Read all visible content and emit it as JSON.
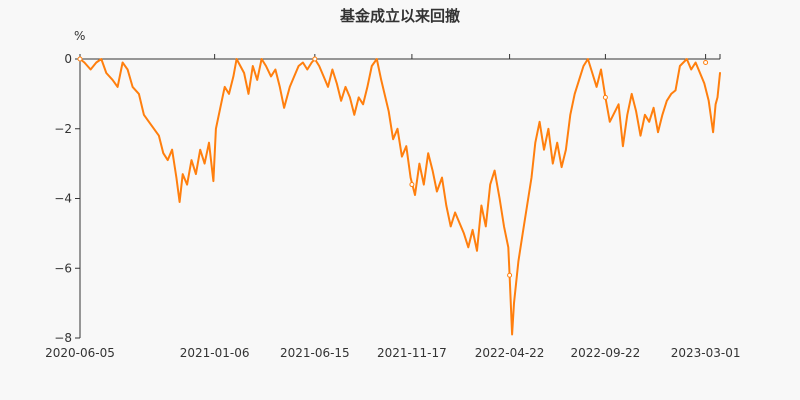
{
  "colors": {
    "series": "#ff7f0e",
    "axis": "#333333",
    "background": "#f8f8f8"
  },
  "chart_data": {
    "type": "line",
    "title": "基金成立以来回撤",
    "ylabel": "%",
    "xlabel": "",
    "ylim": [
      -8,
      0
    ],
    "yticks": [
      0,
      -2,
      -4,
      -6,
      -8
    ],
    "xlim": [
      "2020-06-05",
      "2023-03-24"
    ],
    "xticks": [
      "2020-06-05",
      "2021-01-06",
      "2021-06-15",
      "2021-11-17",
      "2022-04-22",
      "2022-09-22",
      "2023-03-01"
    ],
    "grid": false,
    "legend": "none",
    "series": [
      {
        "name": "",
        "points": [
          [
            "2020-06-05",
            0
          ],
          [
            "2020-06-12",
            -0.1
          ],
          [
            "2020-06-22",
            -0.3
          ],
          [
            "2020-07-01",
            -0.1
          ],
          [
            "2020-07-09",
            0
          ],
          [
            "2020-07-17",
            -0.4
          ],
          [
            "2020-07-27",
            -0.6
          ],
          [
            "2020-08-04",
            -0.8
          ],
          [
            "2020-08-12",
            -0.1
          ],
          [
            "2020-08-20",
            -0.3
          ],
          [
            "2020-08-28",
            -0.8
          ],
          [
            "2020-09-07",
            -1.0
          ],
          [
            "2020-09-15",
            -1.6
          ],
          [
            "2020-09-23",
            -1.8
          ],
          [
            "2020-10-09",
            -2.2
          ],
          [
            "2020-10-16",
            -2.7
          ],
          [
            "2020-10-23",
            -2.9
          ],
          [
            "2020-10-30",
            -2.6
          ],
          [
            "2020-11-06",
            -3.4
          ],
          [
            "2020-11-11",
            -4.1
          ],
          [
            "2020-11-16",
            -3.3
          ],
          [
            "2020-11-23",
            -3.6
          ],
          [
            "2020-11-30",
            -2.9
          ],
          [
            "2020-12-07",
            -3.3
          ],
          [
            "2020-12-14",
            -2.6
          ],
          [
            "2020-12-21",
            -3.0
          ],
          [
            "2020-12-28",
            -2.4
          ],
          [
            "2021-01-04",
            -3.5
          ],
          [
            "2021-01-08",
            -2.0
          ],
          [
            "2021-01-15",
            -1.4
          ],
          [
            "2021-01-22",
            -0.8
          ],
          [
            "2021-01-29",
            -1.0
          ],
          [
            "2021-02-05",
            -0.5
          ],
          [
            "2021-02-10",
            0
          ],
          [
            "2021-02-22",
            -0.4
          ],
          [
            "2021-03-01",
            -1.0
          ],
          [
            "2021-03-08",
            -0.2
          ],
          [
            "2021-03-15",
            -0.6
          ],
          [
            "2021-03-22",
            0
          ],
          [
            "2021-03-29",
            -0.2
          ],
          [
            "2021-04-06",
            -0.5
          ],
          [
            "2021-04-13",
            -0.3
          ],
          [
            "2021-04-20",
            -0.8
          ],
          [
            "2021-04-27",
            -1.4
          ],
          [
            "2021-05-06",
            -0.8
          ],
          [
            "2021-05-13",
            -0.5
          ],
          [
            "2021-05-20",
            -0.2
          ],
          [
            "2021-05-27",
            -0.1
          ],
          [
            "2021-06-03",
            -0.3
          ],
          [
            "2021-06-10",
            -0.1
          ],
          [
            "2021-06-15",
            0
          ],
          [
            "2021-06-22",
            -0.2
          ],
          [
            "2021-06-29",
            -0.5
          ],
          [
            "2021-07-06",
            -0.8
          ],
          [
            "2021-07-13",
            -0.3
          ],
          [
            "2021-07-20",
            -0.7
          ],
          [
            "2021-07-27",
            -1.2
          ],
          [
            "2021-08-03",
            -0.8
          ],
          [
            "2021-08-10",
            -1.1
          ],
          [
            "2021-08-17",
            -1.6
          ],
          [
            "2021-08-24",
            -1.1
          ],
          [
            "2021-08-31",
            -1.3
          ],
          [
            "2021-09-07",
            -0.8
          ],
          [
            "2021-09-14",
            -0.2
          ],
          [
            "2021-09-22",
            0
          ],
          [
            "2021-09-29",
            -0.6
          ],
          [
            "2021-10-11",
            -1.5
          ],
          [
            "2021-10-18",
            -2.3
          ],
          [
            "2021-10-25",
            -2.0
          ],
          [
            "2021-11-01",
            -2.8
          ],
          [
            "2021-11-08",
            -2.5
          ],
          [
            "2021-11-15",
            -3.4
          ],
          [
            "2021-11-22",
            -3.9
          ],
          [
            "2021-11-29",
            -3.0
          ],
          [
            "2021-12-06",
            -3.6
          ],
          [
            "2021-12-13",
            -2.7
          ],
          [
            "2021-12-20",
            -3.2
          ],
          [
            "2021-12-27",
            -3.8
          ],
          [
            "2022-01-04",
            -3.4
          ],
          [
            "2022-01-11",
            -4.2
          ],
          [
            "2022-01-18",
            -4.8
          ],
          [
            "2022-01-25",
            -4.4
          ],
          [
            "2022-02-08",
            -5.0
          ],
          [
            "2022-02-15",
            -5.4
          ],
          [
            "2022-02-22",
            -4.9
          ],
          [
            "2022-03-01",
            -5.5
          ],
          [
            "2022-03-08",
            -4.2
          ],
          [
            "2022-03-15",
            -4.8
          ],
          [
            "2022-03-22",
            -3.6
          ],
          [
            "2022-03-29",
            -3.2
          ],
          [
            "2022-04-06",
            -4.0
          ],
          [
            "2022-04-13",
            -4.8
          ],
          [
            "2022-04-20",
            -5.4
          ],
          [
            "2022-04-22",
            -6.2
          ],
          [
            "2022-04-26",
            -7.9
          ],
          [
            "2022-04-29",
            -7.0
          ],
          [
            "2022-05-06",
            -5.8
          ],
          [
            "2022-05-13",
            -5.0
          ],
          [
            "2022-05-20",
            -4.2
          ],
          [
            "2022-05-27",
            -3.4
          ],
          [
            "2022-06-02",
            -2.4
          ],
          [
            "2022-06-09",
            -1.8
          ],
          [
            "2022-06-16",
            -2.6
          ],
          [
            "2022-06-23",
            -2.0
          ],
          [
            "2022-06-30",
            -3.0
          ],
          [
            "2022-07-07",
            -2.4
          ],
          [
            "2022-07-14",
            -3.1
          ],
          [
            "2022-07-21",
            -2.6
          ],
          [
            "2022-07-28",
            -1.6
          ],
          [
            "2022-08-04",
            -1.0
          ],
          [
            "2022-08-11",
            -0.6
          ],
          [
            "2022-08-18",
            -0.2
          ],
          [
            "2022-08-25",
            0
          ],
          [
            "2022-09-01",
            -0.4
          ],
          [
            "2022-09-08",
            -0.8
          ],
          [
            "2022-09-15",
            -0.3
          ],
          [
            "2022-09-22",
            -1.1
          ],
          [
            "2022-09-29",
            -1.8
          ],
          [
            "2022-10-13",
            -1.3
          ],
          [
            "2022-10-20",
            -2.5
          ],
          [
            "2022-10-27",
            -1.6
          ],
          [
            "2022-11-03",
            -1.0
          ],
          [
            "2022-11-10",
            -1.5
          ],
          [
            "2022-11-17",
            -2.2
          ],
          [
            "2022-11-24",
            -1.6
          ],
          [
            "2022-12-01",
            -1.8
          ],
          [
            "2022-12-08",
            -1.4
          ],
          [
            "2022-12-15",
            -2.1
          ],
          [
            "2022-12-22",
            -1.6
          ],
          [
            "2022-12-29",
            -1.2
          ],
          [
            "2023-01-05",
            -1.0
          ],
          [
            "2023-01-12",
            -0.9
          ],
          [
            "2023-01-19",
            -0.2
          ],
          [
            "2023-01-30",
            0
          ],
          [
            "2023-02-06",
            -0.3
          ],
          [
            "2023-02-13",
            -0.1
          ],
          [
            "2023-02-20",
            -0.4
          ],
          [
            "2023-02-27",
            -0.7
          ],
          [
            "2023-03-06",
            -1.2
          ],
          [
            "2023-03-13",
            -2.1
          ],
          [
            "2023-03-17",
            -1.3
          ],
          [
            "2023-03-20",
            -1.1
          ],
          [
            "2023-03-24",
            -0.4
          ]
        ]
      }
    ],
    "markers": [
      [
        "2020-06-05",
        0
      ],
      [
        "2021-06-15",
        0
      ],
      [
        "2021-11-17",
        -3.6
      ],
      [
        "2022-04-22",
        -6.2
      ],
      [
        "2022-09-22",
        -1.1
      ],
      [
        "2023-03-01",
        -0.1
      ]
    ]
  }
}
